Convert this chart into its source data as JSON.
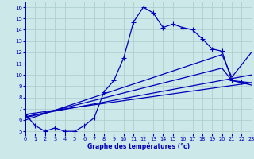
{
  "xlabel": "Graphe des températures (°c)",
  "bg_color": "#cce8e8",
  "grid_color": "#aacccc",
  "line_color": "#0000bb",
  "x_ticks": [
    0,
    1,
    2,
    3,
    4,
    5,
    6,
    7,
    8,
    9,
    10,
    11,
    12,
    13,
    14,
    15,
    16,
    17,
    18,
    19,
    20,
    21,
    22,
    23
  ],
  "y_ticks": [
    5,
    6,
    7,
    8,
    9,
    10,
    11,
    12,
    13,
    14,
    15,
    16
  ],
  "xlim": [
    0,
    23
  ],
  "ylim": [
    4.8,
    16.5
  ],
  "main_series": {
    "x": [
      0,
      1,
      2,
      3,
      4,
      5,
      6,
      7,
      8,
      9,
      10,
      11,
      12,
      13,
      14,
      15,
      16,
      17,
      18,
      19,
      20,
      21,
      22,
      23
    ],
    "y": [
      6.5,
      5.5,
      5.0,
      5.3,
      5.0,
      5.0,
      5.5,
      6.2,
      8.5,
      9.5,
      11.5,
      14.7,
      16.0,
      15.5,
      14.2,
      14.5,
      14.2,
      14.0,
      13.2,
      12.3,
      12.1,
      9.5,
      9.4,
      9.3
    ]
  },
  "straight_lines": [
    {
      "x": [
        0,
        23
      ],
      "y": [
        6.5,
        9.3
      ]
    },
    {
      "x": [
        0,
        23
      ],
      "y": [
        6.3,
        10.0
      ]
    },
    {
      "x": [
        0,
        20,
        21,
        23
      ],
      "y": [
        6.2,
        10.6,
        9.5,
        9.1
      ]
    },
    {
      "x": [
        0,
        20,
        21,
        23
      ],
      "y": [
        6.0,
        11.8,
        9.8,
        12.0
      ]
    }
  ]
}
